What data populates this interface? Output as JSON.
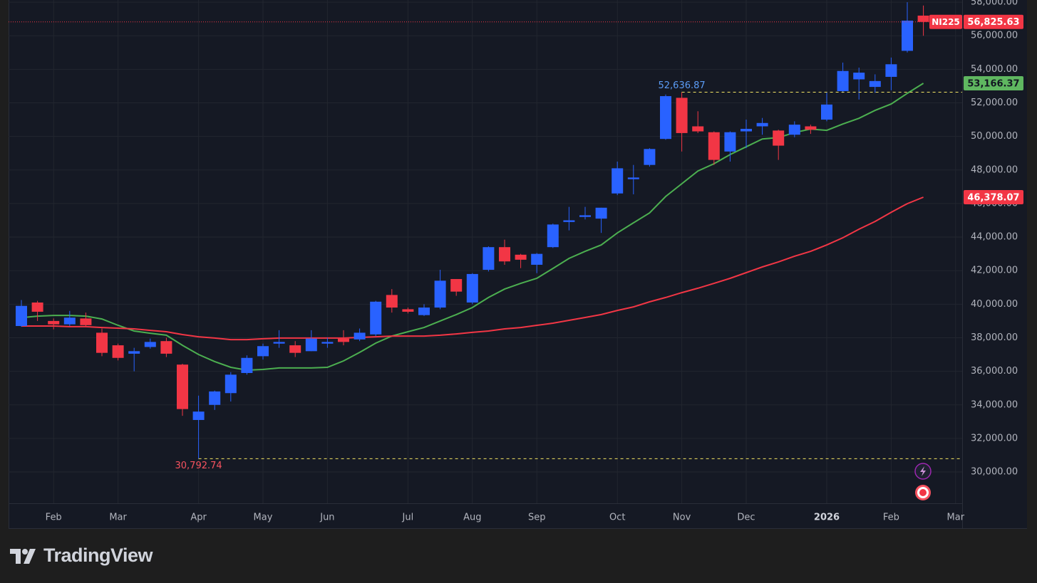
{
  "chart_data": {
    "type": "candlestick",
    "symbol": "NI225",
    "brand": "TradingView",
    "categories": [
      null,
      null,
      "Feb",
      null,
      null,
      null,
      "Mar",
      null,
      null,
      null,
      null,
      "Apr",
      null,
      null,
      null,
      "May",
      null,
      null,
      null,
      "Jun",
      null,
      null,
      null,
      null,
      "Jul",
      null,
      null,
      null,
      "Aug",
      null,
      null,
      null,
      "Sep",
      null,
      null,
      null,
      null,
      "Oct",
      null,
      null,
      null,
      "Nov",
      null,
      null,
      null,
      "Dec",
      null,
      null,
      null,
      null,
      "2026",
      null,
      null,
      null,
      "Feb",
      null,
      null,
      null,
      "Mar"
    ],
    "open": [
      38700,
      40100,
      39000,
      38800,
      39150,
      38300,
      37550,
      37050,
      37450,
      37800,
      36400,
      33100,
      34000,
      34700,
      35900,
      36900,
      37650,
      37550,
      37200,
      37650,
      37950,
      37900,
      38200,
      40550,
      39700,
      39350,
      39800,
      41500,
      40100,
      42050,
      43400,
      42950,
      42350,
      43400,
      44900,
      45200,
      45100,
      46600,
      47450,
      48300,
      49850,
      52300,
      50600,
      50250,
      49100,
      50300,
      50600,
      50350,
      50100,
      50600,
      51000,
      52700,
      53400,
      52950,
      53550,
      55100,
      57200,
      null,
      null
    ],
    "high": [
      40250,
      40200,
      39150,
      39600,
      39500,
      38550,
      37650,
      37400,
      37950,
      38000,
      36450,
      34550,
      34850,
      35950,
      36950,
      37650,
      38450,
      37800,
      38450,
      38000,
      38450,
      38550,
      40200,
      40900,
      39800,
      40000,
      42050,
      41500,
      41850,
      43450,
      43850,
      43000,
      43050,
      44800,
      45800,
      45800,
      45750,
      48500,
      48300,
      49300,
      52500,
      52636.87,
      51500,
      50300,
      50300,
      51000,
      51100,
      50400,
      50900,
      50700,
      52650,
      54400,
      54100,
      53700,
      54700,
      58000,
      57800,
      null,
      null
    ],
    "low": [
      38650,
      39000,
      38500,
      38700,
      38700,
      36900,
      36650,
      36000,
      37350,
      36850,
      33350,
      30792.74,
      33700,
      34200,
      35800,
      36700,
      37400,
      36850,
      37200,
      37400,
      37550,
      37800,
      38100,
      39500,
      39450,
      39300,
      39700,
      40500,
      40000,
      41950,
      42350,
      42150,
      41850,
      43350,
      44400,
      45050,
      44250,
      46500,
      46550,
      48200,
      49800,
      49100,
      50200,
      48300,
      48500,
      49300,
      50100,
      48600,
      49950,
      50150,
      50900,
      52600,
      52200,
      52600,
      52750,
      55000,
      56000,
      null,
      null
    ],
    "close": [
      39900,
      39550,
      38800,
      39200,
      38750,
      37100,
      36800,
      37200,
      37750,
      37050,
      33750,
      33600,
      34800,
      35800,
      36800,
      37500,
      37750,
      37100,
      37950,
      37750,
      37750,
      38300,
      40150,
      39800,
      39550,
      39800,
      41400,
      40750,
      41800,
      43400,
      42550,
      42650,
      43000,
      44750,
      45000,
      45300,
      45750,
      48100,
      47550,
      49250,
      52400,
      50200,
      50300,
      48600,
      50250,
      50450,
      50800,
      49450,
      50700,
      50400,
      51900,
      53900,
      53800,
      53300,
      54300,
      56900,
      56825.63,
      null,
      null
    ],
    "high_labels": [
      null,
      null,
      null,
      null,
      null,
      null,
      null,
      null,
      null,
      null,
      null,
      null,
      null,
      null,
      null,
      null,
      null,
      null,
      null,
      null,
      null,
      null,
      null,
      null,
      null,
      null,
      null,
      null,
      null,
      null,
      null,
      null,
      null,
      null,
      null,
      null,
      null,
      null,
      null,
      null,
      null,
      "52,636.87",
      null,
      null,
      null,
      null,
      null,
      null,
      null,
      null,
      null,
      null,
      null,
      null,
      null,
      null,
      null,
      null,
      null
    ],
    "low_labels": [
      null,
      null,
      null,
      null,
      null,
      null,
      null,
      null,
      null,
      null,
      null,
      "30,792.74",
      null,
      null,
      null,
      null,
      null,
      null,
      null,
      null,
      null,
      null,
      null,
      null,
      null,
      null,
      null,
      null,
      null,
      null,
      null,
      null,
      null,
      null,
      null,
      null,
      null,
      null,
      null,
      null,
      null,
      null,
      null,
      null,
      null,
      null,
      null,
      null,
      null,
      null,
      null,
      null,
      null,
      null,
      null,
      null,
      null,
      null,
      null
    ],
    "close_labels": [
      null,
      null,
      null,
      null,
      null,
      null,
      null,
      null,
      null,
      null,
      null,
      null,
      null,
      null,
      null,
      null,
      null,
      null,
      null,
      null,
      null,
      null,
      null,
      null,
      null,
      null,
      null,
      null,
      null,
      null,
      null,
      null,
      null,
      null,
      null,
      null,
      null,
      null,
      null,
      null,
      null,
      null,
      null,
      null,
      null,
      null,
      null,
      null,
      null,
      null,
      null,
      null,
      null,
      null,
      null,
      null,
      "56,825.63",
      null,
      null
    ],
    "up_color": "#2962ff",
    "down_color": "#f23645",
    "series": [
      {
        "color": "#4caf50",
        "values": [
          39200,
          39290,
          39330,
          39330,
          39290,
          39120,
          38740,
          38400,
          38270,
          38150,
          37550,
          37000,
          36580,
          36240,
          36070,
          36110,
          36200,
          36200,
          36200,
          36240,
          36620,
          37130,
          37680,
          38100,
          38360,
          38610,
          39000,
          39380,
          39800,
          40400,
          40900,
          41240,
          41540,
          42130,
          42730,
          43150,
          43530,
          44250,
          44850,
          45440,
          46420,
          47180,
          47940,
          48370,
          48920,
          49380,
          49850,
          49930,
          50230,
          50440,
          50360,
          50740,
          51080,
          51550,
          51930,
          52570,
          53166.37,
          null,
          null
        ],
        "value_labels": [
          null,
          null,
          null,
          null,
          null,
          null,
          null,
          null,
          null,
          null,
          null,
          null,
          null,
          null,
          null,
          null,
          null,
          null,
          null,
          null,
          null,
          null,
          null,
          null,
          null,
          null,
          null,
          null,
          null,
          null,
          null,
          null,
          null,
          null,
          null,
          null,
          null,
          null,
          null,
          null,
          null,
          null,
          null,
          null,
          null,
          null,
          null,
          null,
          null,
          null,
          null,
          null,
          null,
          null,
          null,
          null,
          "53,166.37",
          null,
          null
        ]
      },
      {
        "color": "#f23645",
        "values": [
          38700,
          38700,
          38700,
          38660,
          38660,
          38610,
          38570,
          38530,
          38440,
          38360,
          38190,
          38060,
          37980,
          37890,
          37890,
          37940,
          37980,
          37980,
          37980,
          37980,
          37980,
          38020,
          38060,
          38100,
          38100,
          38100,
          38150,
          38230,
          38320,
          38400,
          38530,
          38610,
          38740,
          38870,
          39040,
          39210,
          39380,
          39630,
          39840,
          40140,
          40400,
          40690,
          40950,
          41240,
          41540,
          41880,
          42220,
          42520,
          42860,
          43150,
          43530,
          43960,
          44470,
          44930,
          45480,
          45990,
          46378.07,
          null,
          null
        ],
        "value_labels": [
          null,
          null,
          null,
          null,
          null,
          null,
          null,
          null,
          null,
          null,
          null,
          null,
          null,
          null,
          null,
          null,
          null,
          null,
          null,
          null,
          null,
          null,
          null,
          null,
          null,
          null,
          null,
          null,
          null,
          null,
          null,
          null,
          null,
          null,
          null,
          null,
          null,
          null,
          null,
          null,
          null,
          null,
          null,
          null,
          null,
          null,
          null,
          null,
          null,
          null,
          null,
          null,
          null,
          null,
          null,
          null,
          "46,378.07",
          null,
          null
        ]
      }
    ],
    "ylim": [
      26650,
      58130
    ],
    "yticks": [
      {
        "value": 30000,
        "label": "30,000.00"
      },
      {
        "value": 32000,
        "label": "32,000.00"
      },
      {
        "value": 34000,
        "label": "34,000.00"
      },
      {
        "value": 36000,
        "label": "36,000.00"
      },
      {
        "value": 38000,
        "label": "38,000.00"
      },
      {
        "value": 40000,
        "label": "40,000.00"
      },
      {
        "value": 42000,
        "label": "42,000.00"
      },
      {
        "value": 44000,
        "label": "44,000.00"
      },
      {
        "value": 46000,
        "label": "46,000.00"
      },
      {
        "value": 48000,
        "label": "48,000.00"
      },
      {
        "value": 50000,
        "label": "50,000.00"
      },
      {
        "value": 52000,
        "label": "52,000.00"
      },
      {
        "value": 54000,
        "label": "54,000.00"
      },
      {
        "value": 56000,
        "label": "56,000.00"
      },
      {
        "value": 58000,
        "label": "58,000.00"
      }
    ],
    "grid": true
  }
}
